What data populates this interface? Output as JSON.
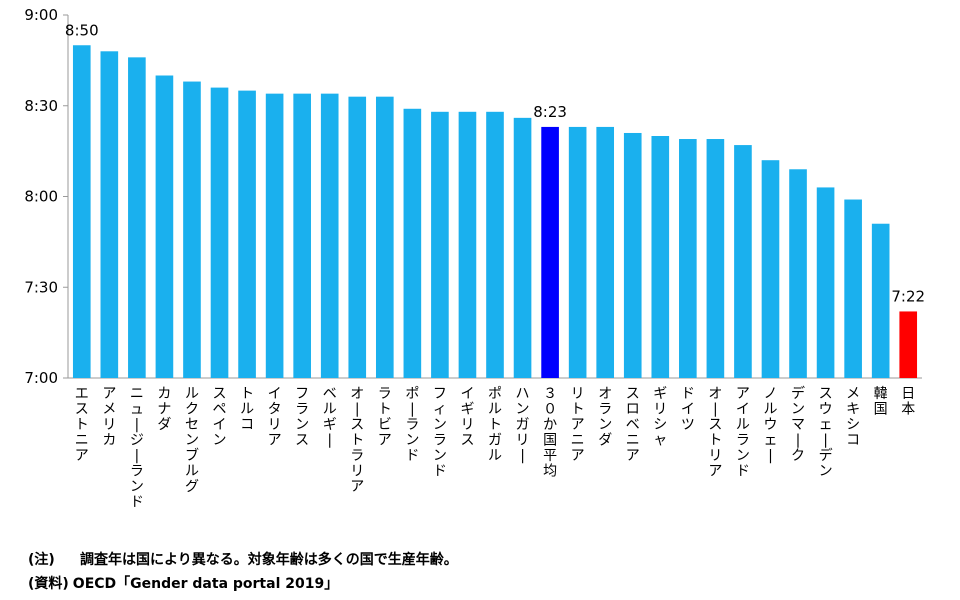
{
  "chart_data": {
    "type": "bar",
    "title": "",
    "xlabel": "",
    "ylabel": "",
    "ylim": [
      420,
      540
    ],
    "y_ticks": [
      {
        "value": 420,
        "label": "7:00"
      },
      {
        "value": 450,
        "label": "7:30"
      },
      {
        "value": 480,
        "label": "8:00"
      },
      {
        "value": 510,
        "label": "8:30"
      },
      {
        "value": 540,
        "label": "9:00"
      }
    ],
    "categories": [
      "エストニア",
      "アメリカ",
      "ニュージーランド",
      "カナダ",
      "ルクセンブルグ",
      "スペイン",
      "トルコ",
      "イタリア",
      "フランス",
      "ベルギー",
      "オーストラリア",
      "ラトビア",
      "ポーランド",
      "フィンランド",
      "イギリス",
      "ポルトガル",
      "ハンガリー",
      "３０か国平均",
      "リトアニア",
      "オランダ",
      "スロベニア",
      "ギリシャ",
      "ドイツ",
      "オーストリア",
      "アイルランド",
      "ノルウェー",
      "デンマーク",
      "スウェーデン",
      "メキシコ",
      "韓国",
      "日本"
    ],
    "values": [
      530,
      528,
      526,
      520,
      518,
      516,
      515,
      514,
      514,
      514,
      513,
      513,
      509,
      508,
      508,
      508,
      506,
      503,
      503,
      503,
      501,
      500,
      499,
      499,
      497,
      492,
      489,
      483,
      479,
      471,
      442
    ],
    "colors": {
      "default": "#1ab0ee",
      "average": "#0000ff",
      "japan": "#ff0000"
    },
    "highlight": {
      "average_index": 17,
      "japan_index": 30
    },
    "data_labels": [
      {
        "index": 0,
        "text": "8:50"
      },
      {
        "index": 17,
        "text": "8:23"
      },
      {
        "index": 30,
        "text": "7:22"
      }
    ]
  },
  "notes": {
    "note_tag": "(注)",
    "note_text": "調査年は国により異なる。対象年齢は多くの国で生産年齢。",
    "source_tag": "(資料)",
    "source_text": "OECD「Gender data portal 2019」"
  }
}
